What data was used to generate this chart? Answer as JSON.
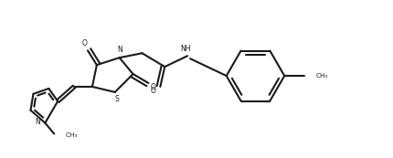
{
  "bg_color": "#ffffff",
  "line_color": "#1a1a1a",
  "line_width": 1.5,
  "figsize": [
    4.3,
    1.73
  ],
  "dpi": 100,
  "xlim": [
    0,
    43
  ],
  "ylim": [
    0,
    17.3
  ]
}
